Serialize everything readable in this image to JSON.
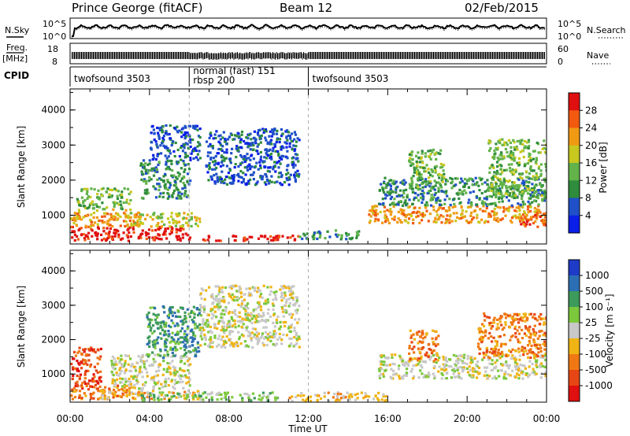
{
  "header": {
    "station": "Prince George (fitACF)",
    "beam": "Beam 12",
    "date": "02/Feb/2015"
  },
  "top_panels": {
    "nsky_label": "N.Sky",
    "nsearch_label": "N.Search",
    "noise_ticks_left": [
      "10^5",
      "10^0"
    ],
    "noise_ticks_right": [
      "10^5",
      "10^0"
    ],
    "freq_label_top": "Freq.",
    "freq_label_unit": "[MHz]",
    "freq_ticks": [
      "18",
      "8"
    ],
    "nave_label": "Nave",
    "nave_ticks": [
      "60",
      "0"
    ],
    "cpid_label": "CPID",
    "cpid_segments": [
      {
        "start_hour": 0,
        "lines": [
          "twofsound 3503"
        ]
      },
      {
        "start_hour": 6,
        "lines": [
          "normal (fast) 151",
          "rbsp 200"
        ]
      },
      {
        "start_hour": 12,
        "lines": [
          "twofsound 3503"
        ]
      }
    ]
  },
  "axes": {
    "ylabel": "Slant Range [km]",
    "xlabel": "Time UT",
    "x_ticks": [
      "00:00",
      "04:00",
      "08:00",
      "12:00",
      "16:00",
      "20:00",
      "00:00"
    ],
    "y_ticks": [
      "1000",
      "2000",
      "3000",
      "4000"
    ]
  },
  "power_colorbar": {
    "label": "Power [dB]",
    "ticks": [
      "4",
      "8",
      "12",
      "16",
      "20",
      "24",
      "28"
    ],
    "colors": [
      "#0a1ee8",
      "#1f50c8",
      "#2e8c3c",
      "#62b34a",
      "#c8c81e",
      "#f09a14",
      "#f25a10",
      "#e01010"
    ]
  },
  "velocity_colorbar": {
    "label": "Velocity [m s⁻¹]",
    "ticks": [
      "1000",
      "500",
      "100",
      "25",
      "-25",
      "-100",
      "-500",
      "-1000"
    ],
    "colors": [
      "#1e3cc8",
      "#2c6eb4",
      "#3c9a5a",
      "#7cc83c",
      "#c8c8c8",
      "#f0b414",
      "#f07814",
      "#e64614",
      "#e01010"
    ]
  },
  "chart_data": [
    {
      "type": "heatmap",
      "name": "power",
      "x_unit": "hours UT",
      "xlim": [
        0,
        24
      ],
      "ylim": [
        180,
        4600
      ],
      "regions": [
        {
          "t0": 0.0,
          "t1": 6.0,
          "r0": 300,
          "r1": 700,
          "level": 7
        },
        {
          "t0": 0.0,
          "t1": 3.5,
          "r0": 700,
          "r1": 1200,
          "level": 5
        },
        {
          "t0": 0.3,
          "t1": 3.0,
          "r0": 1200,
          "r1": 1800,
          "level": 3
        },
        {
          "t0": 3.0,
          "t1": 6.5,
          "r0": 700,
          "r1": 1100,
          "level": 4
        },
        {
          "t0": 3.5,
          "t1": 6.0,
          "r0": 1500,
          "r1": 2600,
          "level": 2
        },
        {
          "t0": 6.5,
          "t1": 11.5,
          "r0": 300,
          "r1": 450,
          "level": 7
        },
        {
          "t0": 11.5,
          "t1": 14.5,
          "r0": 350,
          "r1": 600,
          "level": 2
        },
        {
          "t0": 6.8,
          "t1": 11.5,
          "r0": 1900,
          "r1": 3500,
          "level": 1
        },
        {
          "t0": 4.0,
          "t1": 6.5,
          "r0": 2600,
          "r1": 3600,
          "level": 1
        },
        {
          "t0": 15.0,
          "t1": 24.0,
          "r0": 800,
          "r1": 1300,
          "level": 5
        },
        {
          "t0": 15.5,
          "t1": 24.0,
          "r0": 1300,
          "r1": 2100,
          "level": 2
        },
        {
          "t0": 17.0,
          "t1": 18.8,
          "r0": 1800,
          "r1": 2900,
          "level": 3
        },
        {
          "t0": 21.0,
          "t1": 24.0,
          "r0": 1500,
          "r1": 3200,
          "level": 3
        },
        {
          "t0": 22.5,
          "t1": 24.0,
          "r0": 700,
          "r1": 1100,
          "level": 6
        }
      ]
    },
    {
      "type": "heatmap",
      "name": "velocity",
      "x_unit": "hours UT",
      "xlim": [
        0,
        24
      ],
      "ylim": [
        180,
        4600
      ],
      "regions": [
        {
          "t0": 0.0,
          "t1": 1.5,
          "r0": 600,
          "r1": 1800,
          "level": 7
        },
        {
          "t0": 0.0,
          "t1": 3.0,
          "r0": 300,
          "r1": 700,
          "level": 6
        },
        {
          "t0": 1.5,
          "t1": 6.5,
          "r0": 300,
          "r1": 550,
          "level": 5
        },
        {
          "t0": 2.0,
          "t1": 6.0,
          "r0": 600,
          "r1": 1600,
          "level": 4
        },
        {
          "t0": 3.5,
          "t1": 10.5,
          "r0": 250,
          "r1": 500,
          "level": 3
        },
        {
          "t0": 6.5,
          "t1": 11.5,
          "r0": 1800,
          "r1": 3600,
          "level": 4
        },
        {
          "t0": 3.8,
          "t1": 6.5,
          "r0": 1500,
          "r1": 3000,
          "level": 2
        },
        {
          "t0": 11.0,
          "t1": 16.0,
          "r0": 250,
          "r1": 500,
          "level": 5
        },
        {
          "t0": 15.5,
          "t1": 24.0,
          "r0": 900,
          "r1": 1600,
          "level": 4
        },
        {
          "t0": 17.0,
          "t1": 18.5,
          "r0": 1400,
          "r1": 2300,
          "level": 6
        },
        {
          "t0": 20.5,
          "t1": 24.0,
          "r0": 1500,
          "r1": 2800,
          "level": 6
        }
      ]
    }
  ]
}
